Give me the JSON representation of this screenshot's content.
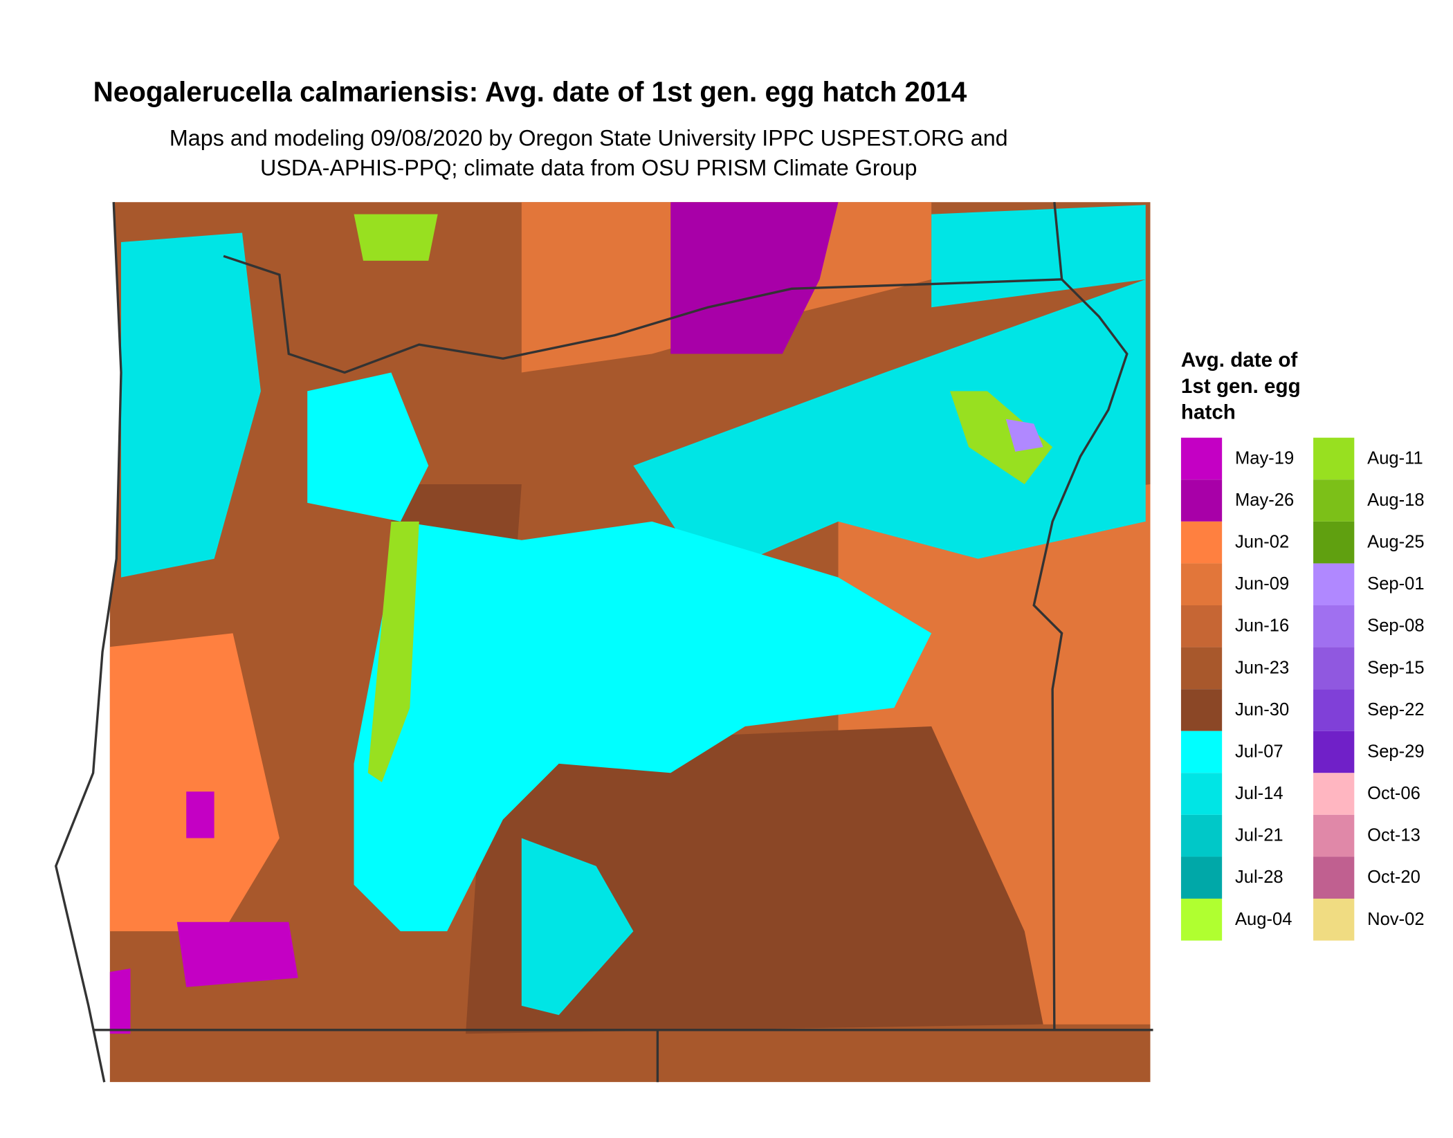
{
  "header": {
    "title": "Neogalerucella calmariensis: Avg. date of 1st gen. egg hatch 2014",
    "subtitle": [
      "Maps and modeling 09/08/2020 by Oregon State University IPPC USPEST.ORG and",
      "USDA-APHIS-PPQ; climate data from OSU PRISM Climate Group"
    ]
  },
  "legend": {
    "title": [
      "Avg. date of",
      "1st gen. egg",
      "hatch"
    ],
    "items": [
      {
        "label": "May-19",
        "color": "#c400c4"
      },
      {
        "label": "May-26",
        "color": "#a800a8"
      },
      {
        "label": "Jun-02",
        "color": "#ff8040"
      },
      {
        "label": "Jun-09",
        "color": "#e2763a"
      },
      {
        "label": "Jun-16",
        "color": "#c66634"
      },
      {
        "label": "Jun-23",
        "color": "#a8582c"
      },
      {
        "label": "Jun-30",
        "color": "#8b4726"
      },
      {
        "label": "Jul-07",
        "color": "#00ffff"
      },
      {
        "label": "Jul-14",
        "color": "#00e5e5"
      },
      {
        "label": "Jul-21",
        "color": "#00c8c8"
      },
      {
        "label": "Jul-28",
        "color": "#00a8a8"
      },
      {
        "label": "Aug-04",
        "color": "#b0ff30"
      },
      {
        "label": "Aug-11",
        "color": "#98e020"
      },
      {
        "label": "Aug-18",
        "color": "#7cc018"
      },
      {
        "label": "Aug-25",
        "color": "#60a010"
      },
      {
        "label": "Sep-01",
        "color": "#b088ff"
      },
      {
        "label": "Sep-08",
        "color": "#a070f0"
      },
      {
        "label": "Sep-15",
        "color": "#9058e0"
      },
      {
        "label": "Sep-22",
        "color": "#8040d8"
      },
      {
        "label": "Sep-29",
        "color": "#7020c8"
      },
      {
        "label": "Oct-06",
        "color": "#ffb6c1"
      },
      {
        "label": "Oct-13",
        "color": "#e088a8"
      },
      {
        "label": "Oct-20",
        "color": "#c06090"
      },
      {
        "label": "Nov-02",
        "color": "#f0dc82"
      }
    ]
  }
}
